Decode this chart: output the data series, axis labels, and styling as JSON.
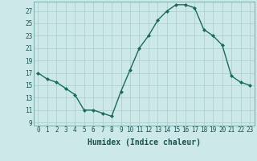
{
  "x": [
    0,
    1,
    2,
    3,
    4,
    5,
    6,
    7,
    8,
    9,
    10,
    11,
    12,
    13,
    14,
    15,
    16,
    17,
    18,
    19,
    20,
    21,
    22,
    23
  ],
  "y": [
    17,
    16,
    15.5,
    14.5,
    13.5,
    11,
    11,
    10.5,
    10,
    14,
    17.5,
    21,
    23,
    25.5,
    27,
    28,
    28,
    27.5,
    24,
    23,
    21.5,
    16.5,
    15.5,
    15
  ],
  "line_color": "#1a6b5a",
  "marker": "D",
  "marker_size": 2,
  "bg_color": "#cce8e8",
  "grid_color": "#aacccc",
  "xlabel": "Humidex (Indice chaleur)",
  "xlabel_fontsize": 7,
  "ylabel_ticks": [
    9,
    11,
    13,
    15,
    17,
    19,
    21,
    23,
    25,
    27
  ],
  "xlim": [
    -0.5,
    23.5
  ],
  "ylim": [
    8.5,
    28.5
  ],
  "xtick_labels": [
    "0",
    "1",
    "2",
    "3",
    "4",
    "5",
    "6",
    "7",
    "8",
    "9",
    "10",
    "11",
    "12",
    "13",
    "14",
    "15",
    "16",
    "17",
    "18",
    "19",
    "20",
    "21",
    "22",
    "23"
  ],
  "tick_fontsize": 5.5,
  "linewidth": 1.0
}
